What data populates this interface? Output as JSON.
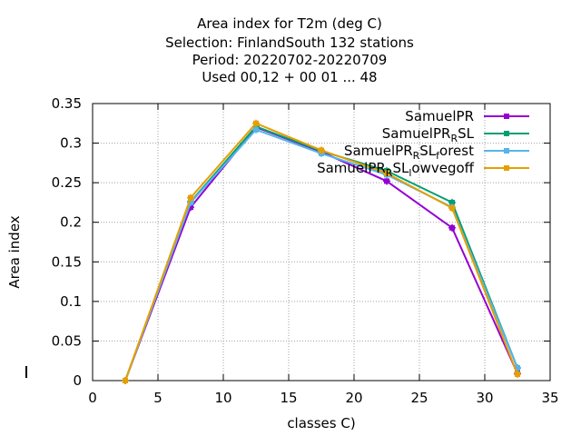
{
  "chart_data": {
    "type": "line",
    "title_lines": [
      "Area index  for T2m (deg C)",
      "Selection: FinlandSouth     132 stations",
      "Period: 20220702-20220709",
      "Used  00,12  + 00 01 ... 48"
    ],
    "xlabel": "classes C)",
    "ylabel": "Area index",
    "xlim": [
      0,
      35
    ],
    "ylim": [
      0,
      0.35
    ],
    "xticks": [
      0,
      5,
      10,
      15,
      20,
      25,
      30,
      35
    ],
    "yticks": [
      0,
      0.05,
      0.1,
      0.15,
      0.2,
      0.25,
      0.3,
      0.35
    ],
    "ytick_labels": [
      "0",
      "0.05",
      "0.1",
      "0.15",
      "0.2",
      "0.25",
      "0.3",
      "0.35"
    ],
    "grid": true,
    "legend_position": "top-right",
    "series": [
      {
        "name": "SamuelPR",
        "legend_parts": [
          [
            "SamuelPR",
            false
          ]
        ],
        "color": "#9400d3",
        "x": [
          2.5,
          7.5,
          12.5,
          17.5,
          22.5,
          27.5,
          32.5
        ],
        "y": [
          0.0,
          0.219,
          0.32,
          0.289,
          0.252,
          0.193,
          0.009
        ]
      },
      {
        "name": "SamuelPR_RSL",
        "legend_parts": [
          [
            "SamuelPR",
            false
          ],
          [
            "R",
            true
          ],
          [
            "SL",
            false
          ]
        ],
        "color": "#009e73",
        "x": [
          2.5,
          7.5,
          12.5,
          17.5,
          22.5,
          27.5,
          32.5
        ],
        "y": [
          0.0,
          0.226,
          0.321,
          0.29,
          0.265,
          0.225,
          0.016
        ]
      },
      {
        "name": "SamuelPR_RSL_forest",
        "legend_parts": [
          [
            "SamuelPR",
            false
          ],
          [
            "R",
            true
          ],
          [
            "SL",
            false
          ],
          [
            "f",
            true
          ],
          [
            "orest",
            false
          ]
        ],
        "color": "#56b4e9",
        "x": [
          2.5,
          7.5,
          12.5,
          17.5,
          22.5,
          27.5,
          32.5
        ],
        "y": [
          0.0,
          0.225,
          0.317,
          0.287,
          0.26,
          0.219,
          0.016
        ]
      },
      {
        "name": "SamuelPR_RSL_lowvegoff",
        "legend_parts": [
          [
            "SamuelPR",
            false
          ],
          [
            "R",
            true
          ],
          [
            "SL",
            false
          ],
          [
            "l",
            true
          ],
          [
            "owvegoff",
            false
          ]
        ],
        "color": "#e69f00",
        "x": [
          2.5,
          7.5,
          12.5,
          17.5,
          22.5,
          27.5,
          32.5
        ],
        "y": [
          0.0,
          0.231,
          0.325,
          0.291,
          0.262,
          0.218,
          0.008
        ]
      }
    ]
  }
}
